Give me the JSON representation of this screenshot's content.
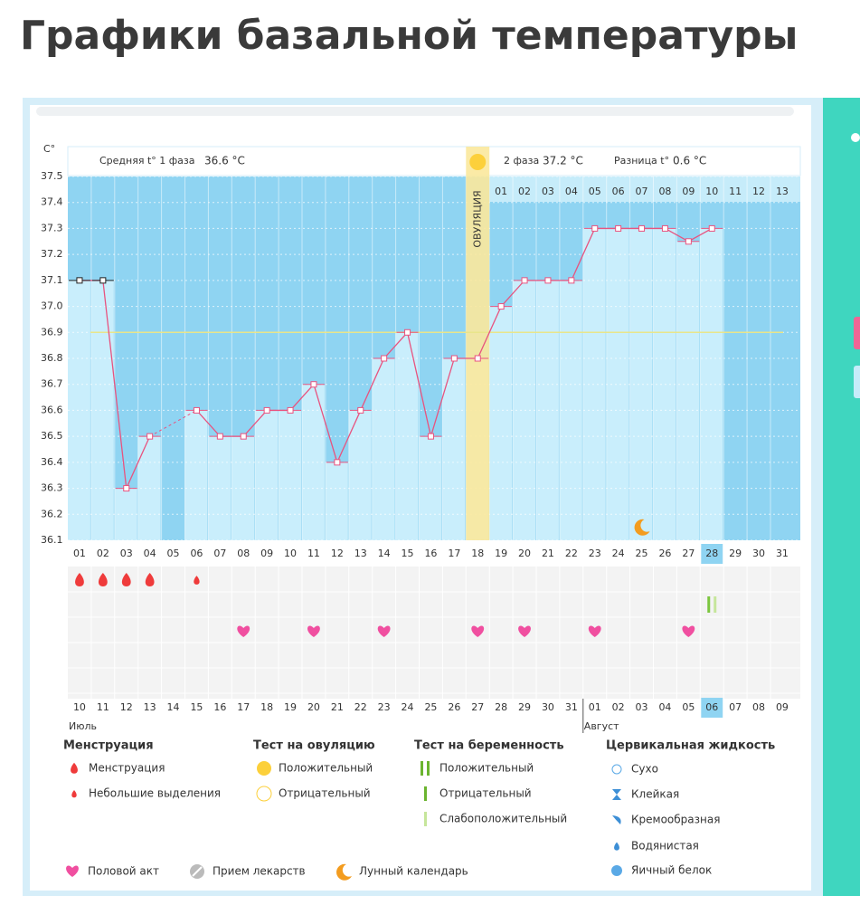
{
  "page_title": "Графики базальной температуры",
  "chart_data": {
    "type": "line",
    "y_unit": "C°",
    "phase1_label": "Средняя t° 1 фаза",
    "phase1_value": "36.6 °C",
    "phase2_label": "2 фаза",
    "phase2_value": "37.2 °C",
    "diff_label": "Разница t°",
    "diff_value": "0.6 °C",
    "ovulation_label": "ОВУЛЯЦИЯ",
    "ovulation_day": 17,
    "cover_line": 36.9,
    "categories": [
      "01",
      "02",
      "03",
      "04",
      "05",
      "06",
      "07",
      "08",
      "09",
      "10",
      "11",
      "12",
      "13",
      "14",
      "15",
      "16",
      "17",
      "18",
      "19",
      "20",
      "21",
      "22",
      "23",
      "24",
      "25",
      "26",
      "27",
      "28",
      "29",
      "30",
      "31"
    ],
    "values": [
      37.1,
      37.1,
      36.3,
      36.5,
      null,
      36.6,
      36.5,
      36.5,
      36.6,
      36.6,
      36.7,
      36.4,
      36.6,
      36.8,
      36.9,
      36.5,
      36.8,
      36.8,
      37.0,
      37.1,
      37.1,
      37.1,
      37.3,
      37.3,
      37.3,
      37.3,
      37.25,
      37.3,
      null,
      null,
      null
    ],
    "color": "#e8537f",
    "phase2_days": [
      "01",
      "02",
      "03",
      "04",
      "05",
      "06",
      "07",
      "08",
      "09",
      "10",
      "11",
      "12",
      "13"
    ],
    "current_day": 27,
    "ylim": [
      36.1,
      37.5
    ],
    "yticks": [
      36.1,
      36.2,
      36.3,
      36.4,
      36.5,
      36.6,
      36.7,
      36.8,
      36.9,
      {
        "value": 37,
        "label": "37.0"
      },
      37.1,
      37.2,
      37.3,
      37.4,
      37.5
    ],
    "dates": [
      "10",
      "11",
      "12",
      "13",
      "14",
      "15",
      "16",
      "17",
      "18",
      "19",
      "20",
      "21",
      "22",
      "23",
      "24",
      "25",
      "26",
      "27",
      "28",
      "29",
      "30",
      "31",
      "01",
      "02",
      "03",
      "04",
      "05",
      "06",
      "07",
      "08",
      "09"
    ],
    "weekend_dates": [
      0,
      6,
      7,
      13,
      14,
      20,
      21,
      28
    ],
    "months": [
      {
        "name": "Июль",
        "start": 0
      },
      {
        "name": "Август",
        "start": 22
      }
    ],
    "events": {
      "menstruation": [
        0,
        1,
        2,
        3
      ],
      "spotting": [
        5
      ],
      "pregnancy_test_weak": [
        27
      ],
      "intercourse": [
        7,
        10,
        13,
        17,
        19,
        22,
        26
      ],
      "moon": [
        24
      ]
    }
  },
  "legend": {
    "groups": [
      {
        "title": "Менструация",
        "items": [
          "Менструация",
          "Небольшие выделения"
        ]
      },
      {
        "title": "Тест на овуляцию",
        "items": [
          "Положительный",
          "Отрицательный"
        ]
      },
      {
        "title": "Тест на беременность",
        "items": [
          "Положительный",
          "Отрицательный",
          "Слабоположительный"
        ]
      },
      {
        "title": "Цервикальная жидкость",
        "items": [
          "Сухо",
          "Клейкая",
          "Кремообразная",
          "Водянистая",
          "Яичный белок"
        ]
      }
    ],
    "extra": [
      "Половой акт",
      "Прием лекарств",
      "Лунный календарь"
    ]
  }
}
